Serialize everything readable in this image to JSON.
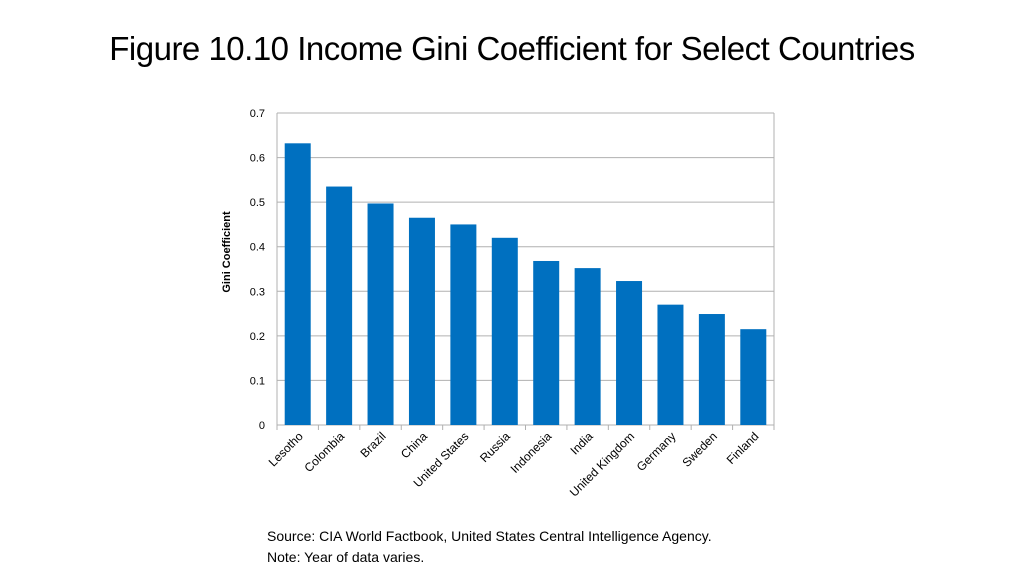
{
  "title": "Figure 10.10 Income Gini Coefficient for Select Countries",
  "chart_data": {
    "type": "bar",
    "categories": [
      "Lesotho",
      "Colombia",
      "Brazil",
      "China",
      "United States",
      "Russia",
      "Indonesia",
      "India",
      "United Kingdom",
      "Germany",
      "Sweden",
      "Finland"
    ],
    "values": [
      0.632,
      0.535,
      0.497,
      0.465,
      0.45,
      0.42,
      0.368,
      0.352,
      0.323,
      0.27,
      0.249,
      0.215
    ],
    "ylabel": "Gini Coefficient",
    "xlabel": "",
    "ylim": [
      0,
      0.7
    ],
    "yticks": [
      "0",
      "0.1",
      "0.2",
      "0.3",
      "0.4",
      "0.5",
      "0.6",
      "0.7"
    ],
    "grid": true,
    "bar_color": "#0070C0",
    "grid_color": "#b0b0b0"
  },
  "source": "Source: CIA World Factbook, United States Central Intelligence Agency.",
  "note": "Note: Year of data varies."
}
